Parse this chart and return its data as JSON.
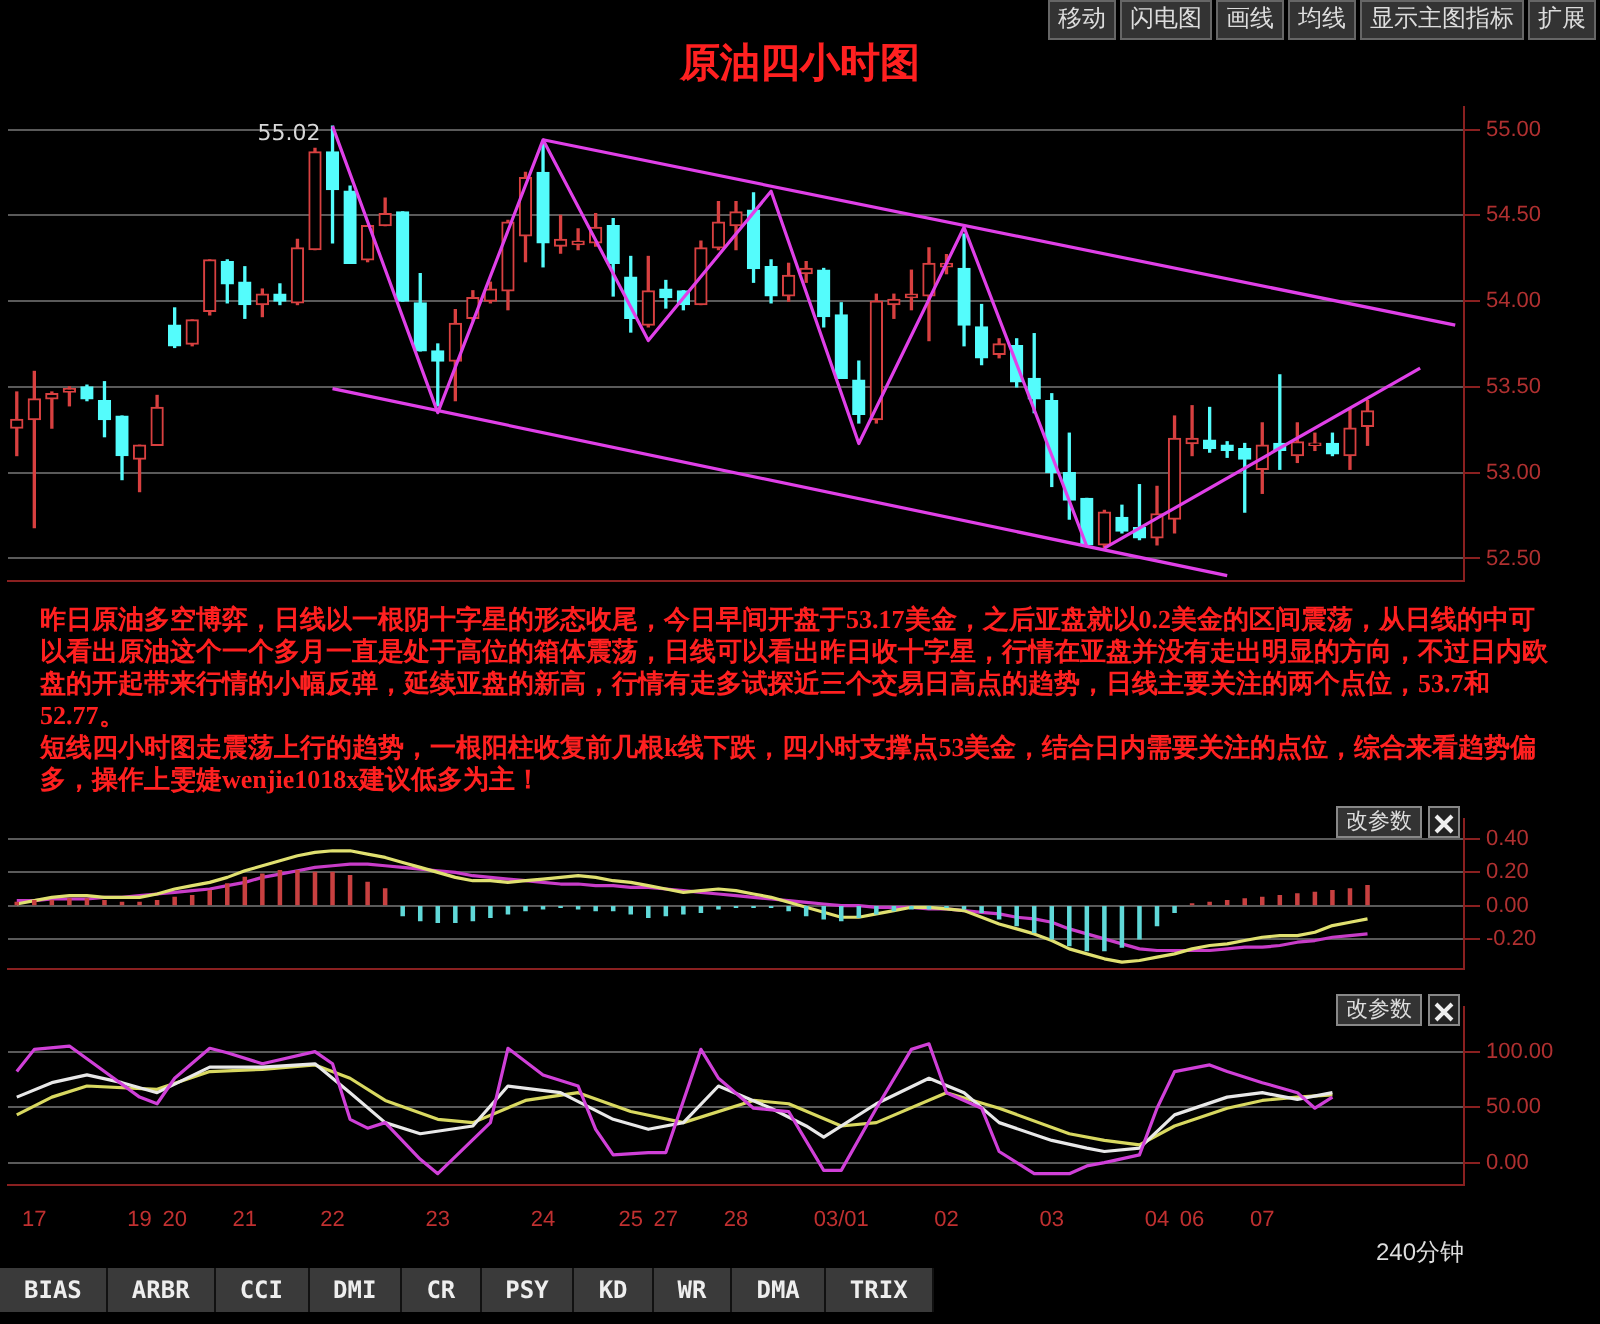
{
  "chart_data": [
    {
      "type": "other",
      "annotations": [
        "移动",
        "闪电图",
        "画线",
        "均线",
        "显示主图指标",
        "扩展"
      ]
    },
    {
      "type": "candlestick",
      "title": "原油四小时图",
      "categories": [
        null,
        null,
        null,
        null,
        null,
        null,
        null,
        null,
        null,
        null,
        null,
        null,
        null,
        null,
        null,
        null,
        null,
        null,
        null,
        null,
        null,
        null,
        null,
        null,
        null,
        null,
        null,
        null,
        null,
        null,
        null,
        null,
        null,
        null,
        null,
        null,
        null,
        null,
        null,
        null,
        null,
        null,
        null,
        null,
        null,
        null,
        null,
        null,
        null,
        null,
        null,
        null,
        null,
        null,
        null,
        null,
        null,
        null,
        null,
        null,
        null,
        null,
        null,
        null,
        null,
        null,
        null,
        null,
        null,
        null,
        null,
        null,
        null,
        null,
        null,
        null,
        null,
        null,
        null,
        null,
        null,
        null,
        null
      ],
      "ohlc": [
        [
          53.26,
          53.47,
          53.1,
          53.31
        ],
        [
          53.31,
          53.59,
          52.68,
          53.43
        ],
        [
          53.43,
          53.47,
          53.26,
          53.46
        ],
        [
          53.47,
          53.5,
          53.39,
          53.49
        ],
        [
          53.5,
          53.51,
          53.42,
          53.43
        ],
        [
          53.42,
          53.53,
          53.21,
          53.31
        ],
        [
          53.33,
          53.33,
          52.96,
          53.1
        ],
        [
          53.08,
          53.16,
          52.89,
          53.16
        ],
        [
          53.16,
          53.45,
          53.16,
          53.38
        ],
        [
          53.86,
          53.96,
          53.73,
          53.74
        ],
        [
          53.75,
          53.89,
          53.74,
          53.89
        ],
        [
          53.94,
          54.24,
          53.92,
          54.24
        ],
        [
          54.23,
          54.24,
          53.99,
          54.1
        ],
        [
          54.11,
          54.2,
          53.9,
          53.98
        ],
        [
          53.98,
          54.07,
          53.91,
          54.04
        ],
        [
          54.04,
          54.1,
          53.98,
          54.0
        ],
        [
          53.99,
          54.36,
          53.98,
          54.31
        ],
        [
          54.3,
          54.89,
          54.3,
          54.87
        ],
        [
          54.87,
          55.02,
          54.34,
          54.65
        ],
        [
          54.64,
          54.67,
          54.22,
          54.22
        ],
        [
          54.24,
          54.44,
          54.23,
          54.44
        ],
        [
          54.44,
          54.6,
          54.44,
          54.51
        ],
        [
          54.52,
          54.52,
          54.0,
          54.0
        ],
        [
          53.99,
          54.16,
          53.71,
          53.71
        ],
        [
          53.71,
          53.75,
          53.39,
          53.65
        ],
        [
          53.65,
          53.95,
          53.42,
          53.87
        ],
        [
          53.9,
          54.06,
          53.89,
          54.02
        ],
        [
          54.0,
          54.11,
          53.99,
          54.07
        ],
        [
          54.06,
          54.47,
          53.95,
          54.46
        ],
        [
          54.38,
          54.75,
          54.23,
          54.72
        ],
        [
          54.75,
          54.92,
          54.2,
          54.34
        ],
        [
          54.32,
          54.5,
          54.28,
          54.36
        ],
        [
          54.33,
          54.42,
          54.3,
          54.35
        ],
        [
          54.34,
          54.51,
          54.32,
          54.43
        ],
        [
          54.44,
          54.48,
          54.03,
          54.22
        ],
        [
          54.14,
          54.26,
          53.82,
          53.9
        ],
        [
          53.86,
          54.26,
          53.85,
          54.06
        ],
        [
          54.07,
          54.12,
          53.96,
          54.02
        ],
        [
          54.06,
          54.06,
          53.95,
          53.98
        ],
        [
          53.98,
          54.35,
          53.98,
          54.31
        ],
        [
          54.31,
          54.58,
          54.3,
          54.46
        ],
        [
          54.44,
          54.58,
          54.3,
          54.52
        ],
        [
          54.53,
          54.63,
          54.11,
          54.19
        ],
        [
          54.2,
          54.24,
          53.99,
          54.03
        ],
        [
          54.03,
          54.22,
          54.0,
          54.15
        ],
        [
          54.16,
          54.23,
          54.11,
          54.19
        ],
        [
          54.18,
          54.19,
          53.85,
          53.91
        ],
        [
          53.92,
          53.99,
          53.55,
          53.55
        ],
        [
          53.54,
          53.65,
          53.29,
          53.34
        ],
        [
          53.31,
          54.04,
          53.29,
          54.0
        ],
        [
          53.98,
          54.04,
          53.9,
          54.01
        ],
        [
          54.02,
          54.18,
          53.95,
          54.04
        ],
        [
          54.03,
          54.31,
          53.77,
          54.22
        ],
        [
          54.2,
          54.27,
          54.16,
          54.22
        ],
        [
          54.19,
          54.39,
          53.74,
          53.86
        ],
        [
          53.85,
          53.98,
          53.63,
          53.67
        ],
        [
          53.69,
          53.78,
          53.67,
          53.75
        ],
        [
          53.74,
          53.78,
          53.5,
          53.53
        ],
        [
          53.55,
          53.81,
          53.35,
          53.43
        ],
        [
          53.42,
          53.46,
          52.92,
          53.0
        ],
        [
          53.0,
          53.23,
          52.73,
          52.84
        ],
        [
          52.85,
          52.85,
          52.57,
          52.58
        ],
        [
          52.58,
          52.78,
          52.56,
          52.77
        ],
        [
          52.74,
          52.81,
          52.65,
          52.66
        ],
        [
          52.68,
          52.93,
          52.61,
          52.62
        ],
        [
          52.62,
          52.92,
          52.58,
          52.76
        ],
        [
          52.73,
          53.33,
          52.65,
          53.2
        ],
        [
          53.17,
          53.39,
          53.1,
          53.2
        ],
        [
          53.19,
          53.38,
          53.12,
          53.14
        ],
        [
          53.16,
          53.18,
          53.09,
          53.13
        ],
        [
          53.14,
          53.17,
          52.77,
          53.08
        ],
        [
          53.02,
          53.29,
          52.88,
          53.16
        ],
        [
          53.17,
          53.57,
          53.02,
          53.13
        ],
        [
          53.1,
          53.29,
          53.06,
          53.18
        ],
        [
          53.16,
          53.23,
          53.13,
          53.17
        ],
        [
          53.17,
          53.23,
          53.1,
          53.11
        ],
        [
          53.1,
          53.37,
          53.02,
          53.26
        ],
        [
          53.27,
          53.42,
          53.16,
          53.36
        ],
        null,
        null,
        null,
        null,
        null
      ],
      "colors": [
        "#d84040",
        "#d84040",
        "#d84040",
        "#d84040",
        "#54fcfc",
        "#54fcfc",
        "#54fcfc",
        "#d84040",
        "#d84040",
        "#54fcfc",
        "#d84040",
        "#d84040",
        "#54fcfc",
        "#54fcfc",
        "#d84040",
        "#54fcfc",
        "#d84040",
        "#d84040",
        "#54fcfc",
        "#54fcfc",
        "#d84040",
        "#d84040",
        "#54fcfc",
        "#54fcfc",
        "#54fcfc",
        "#d84040",
        "#d84040",
        "#d84040",
        "#d84040",
        "#d84040",
        "#54fcfc",
        "#d84040",
        "#d84040",
        "#d84040",
        "#54fcfc",
        "#54fcfc",
        "#d84040",
        "#54fcfc",
        "#54fcfc",
        "#d84040",
        "#d84040",
        "#d84040",
        "#54fcfc",
        "#54fcfc",
        "#d84040",
        "#d84040",
        "#54fcfc",
        "#54fcfc",
        "#54fcfc",
        "#d84040",
        "#d84040",
        "#d84040",
        "#d84040",
        "#d84040",
        "#54fcfc",
        "#54fcfc",
        "#d84040",
        "#54fcfc",
        "#54fcfc",
        "#54fcfc",
        "#54fcfc",
        "#54fcfc",
        "#d84040",
        "#54fcfc",
        "#54fcfc",
        "#d84040",
        "#d84040",
        "#d84040",
        "#54fcfc",
        "#54fcfc",
        "#54fcfc",
        "#d84040",
        "#54fcfc",
        "#d84040",
        "#d84040",
        "#54fcfc",
        "#d84040",
        "#d84040",
        null,
        null,
        null,
        null,
        null
      ],
      "series": [
        {
          "type": "line",
          "color": "#e040e8",
          "values": [
            null,
            null,
            null,
            null,
            null,
            null,
            null,
            null,
            null,
            null,
            null,
            null,
            null,
            null,
            null,
            null,
            null,
            null,
            55.02,
            null,
            null,
            null,
            null,
            null,
            53.35,
            null,
            null,
            null,
            null,
            null,
            54.94,
            null,
            null,
            null,
            null,
            null,
            53.77,
            null,
            null,
            null,
            null,
            null,
            null,
            54.64,
            null,
            null,
            null,
            null,
            53.17,
            null,
            null,
            null,
            null,
            null,
            54.43,
            null,
            null,
            null,
            null,
            null,
            null,
            52.57,
            null,
            null,
            null,
            null,
            null,
            null,
            null,
            null,
            null,
            null,
            null,
            null,
            null,
            null,
            null,
            null,
            null,
            null,
            null,
            null,
            null
          ]
        },
        {
          "type": "line",
          "color": "#e040e8",
          "values": [
            null,
            null,
            null,
            null,
            null,
            null,
            null,
            null,
            null,
            null,
            null,
            null,
            null,
            null,
            null,
            null,
            null,
            null,
            null,
            null,
            null,
            null,
            null,
            null,
            null,
            null,
            null,
            null,
            null,
            null,
            null,
            null,
            null,
            null,
            null,
            null,
            null,
            null,
            null,
            null,
            null,
            null,
            null,
            null,
            null,
            null,
            null,
            null,
            null,
            null,
            null,
            null,
            null,
            null,
            null,
            null,
            null,
            null,
            null,
            null,
            null,
            null,
            52.56,
            null,
            null,
            null,
            null,
            null,
            null,
            null,
            null,
            null,
            null,
            null,
            null,
            null,
            null,
            null,
            null,
            null,
            53.61,
            null,
            null
          ]
        },
        {
          "type": "line",
          "color": "#e040e8",
          "values": [
            null,
            null,
            null,
            null,
            null,
            null,
            null,
            null,
            null,
            null,
            null,
            null,
            null,
            null,
            null,
            null,
            null,
            null,
            null,
            null,
            null,
            null,
            null,
            null,
            null,
            null,
            null,
            null,
            null,
            null,
            54.94,
            null,
            null,
            null,
            null,
            null,
            null,
            null,
            null,
            null,
            null,
            null,
            null,
            null,
            null,
            null,
            null,
            null,
            null,
            null,
            null,
            null,
            null,
            null,
            null,
            null,
            null,
            null,
            null,
            null,
            null,
            null,
            null,
            null,
            null,
            null,
            null,
            null,
            null,
            null,
            null,
            null,
            null,
            null,
            null,
            null,
            null,
            null,
            null,
            null,
            null,
            null,
            53.86
          ]
        },
        {
          "type": "line",
          "color": "#e040e8",
          "values": [
            null,
            null,
            null,
            null,
            null,
            null,
            null,
            null,
            null,
            null,
            null,
            null,
            null,
            null,
            null,
            null,
            null,
            null,
            53.49,
            null,
            null,
            null,
            null,
            null,
            null,
            null,
            null,
            null,
            null,
            null,
            null,
            null,
            null,
            null,
            null,
            null,
            null,
            null,
            null,
            null,
            null,
            null,
            null,
            null,
            null,
            null,
            null,
            null,
            null,
            null,
            null,
            null,
            null,
            null,
            null,
            null,
            null,
            null,
            null,
            null,
            null,
            null,
            null,
            null,
            null,
            null,
            null,
            null,
            null,
            52.4,
            null,
            null,
            null,
            null,
            null,
            null,
            null,
            null,
            null,
            null,
            null,
            null,
            null
          ]
        }
      ],
      "ylim": [
        52.37,
        55.13
      ],
      "yticks": [
        {
          "value": 52.5,
          "label": "52.50"
        },
        {
          "value": 53,
          "label": "53.00"
        },
        {
          "value": 53.5,
          "label": "53.50"
        },
        {
          "value": 54,
          "label": "54.00"
        },
        {
          "value": 54.5,
          "label": "54.50"
        },
        {
          "value": 55,
          "label": "55.00"
        }
      ],
      "grid": "y",
      "tick_labels": "y",
      "annotations": [
        "55.02",
        "昨日原油多空博弈，日线以一根阴十字星的形态收尾，今日早间开盘于53.17美金，之后亚盘就以0.2美金的区间震荡，从日线的中可以看出原油这个一个多月一直是处于高位的箱体震荡，日线可以看出昨日收十字星，行情在亚盘并没有走出明显的方向，不过日内欧盘的开起带来行情的小幅反弹，延续亚盘的新高，行情有走多试探近三个交易日高点的趋势，日线主要关注的两个点位，53.7和52.77。",
        "短线四小时图走震荡上行的趋势，一根阳柱收复前几根k线下跌，四小时支撑点53美金，结合日内需要关注的点位，综合来看趋势偏多，操作上雯婕wenjie1018x建议低多为主！"
      ]
    },
    {
      "type": "bar",
      "categories": [
        null,
        null,
        null,
        null,
        null,
        null,
        null,
        null,
        null,
        null,
        null,
        null,
        null,
        null,
        null,
        null,
        null,
        null,
        null,
        null,
        null,
        null,
        null,
        null,
        null,
        null,
        null,
        null,
        null,
        null,
        null,
        null,
        null,
        null,
        null,
        null,
        null,
        null,
        null,
        null,
        null,
        null,
        null,
        null,
        null,
        null,
        null,
        null,
        null,
        null,
        null,
        null,
        null,
        null,
        null,
        null,
        null,
        null,
        null,
        null,
        null,
        null,
        null,
        null,
        null,
        null,
        null,
        null,
        null,
        null,
        null,
        null,
        null,
        null,
        null,
        null,
        null,
        null,
        null,
        null,
        null,
        null,
        null
      ],
      "series": [
        {
          "type": "bar",
          "values": [
            0.02,
            0.03,
            0.03,
            0.04,
            0.04,
            0.03,
            0.02,
            0.02,
            0.03,
            0.05,
            0.06,
            0.09,
            0.13,
            0.17,
            0.19,
            0.21,
            0.21,
            0.2,
            0.2,
            0.18,
            0.14,
            0.1,
            -0.06,
            -0.09,
            -0.1,
            -0.1,
            -0.09,
            -0.07,
            -0.05,
            -0.03,
            -0.02,
            -0.01,
            -0.02,
            -0.03,
            -0.03,
            -0.05,
            -0.07,
            -0.06,
            -0.05,
            -0.04,
            -0.02,
            -0.01,
            -0.01,
            -0.01,
            -0.03,
            -0.06,
            -0.08,
            -0.09,
            -0.07,
            -0.05,
            -0.03,
            -0.02,
            -0.02,
            -0.01,
            -0.02,
            -0.04,
            -0.08,
            -0.12,
            -0.16,
            -0.2,
            -0.24,
            -0.27,
            -0.27,
            -0.25,
            -0.2,
            -0.12,
            -0.04,
            0.01,
            0.02,
            0.03,
            0.04,
            0.05,
            0.06,
            0.07,
            0.08,
            0.09,
            0.1,
            0.12,
            null,
            null,
            null,
            null,
            null
          ],
          "colors": [
            "#c84040",
            "#c84040",
            "#c84040",
            "#c84040",
            "#c84040",
            "#c84040",
            "#c84040",
            "#c84040",
            "#c84040",
            "#c84040",
            "#c84040",
            "#c84040",
            "#c84040",
            "#c84040",
            "#c84040",
            "#c84040",
            "#c84040",
            "#c84040",
            "#c84040",
            "#c84040",
            "#c84040",
            "#c84040",
            "#60d8d8",
            "#60d8d8",
            "#60d8d8",
            "#60d8d8",
            "#60d8d8",
            "#60d8d8",
            "#60d8d8",
            "#60d8d8",
            "#60d8d8",
            "#60d8d8",
            "#60d8d8",
            "#60d8d8",
            "#60d8d8",
            "#60d8d8",
            "#60d8d8",
            "#60d8d8",
            "#60d8d8",
            "#60d8d8",
            "#60d8d8",
            "#60d8d8",
            "#60d8d8",
            "#60d8d8",
            "#60d8d8",
            "#60d8d8",
            "#60d8d8",
            "#60d8d8",
            "#60d8d8",
            "#60d8d8",
            "#60d8d8",
            "#60d8d8",
            "#60d8d8",
            "#60d8d8",
            "#60d8d8",
            "#60d8d8",
            "#60d8d8",
            "#60d8d8",
            "#60d8d8",
            "#60d8d8",
            "#60d8d8",
            "#60d8d8",
            "#60d8d8",
            "#60d8d8",
            "#60d8d8",
            "#60d8d8",
            "#60d8d8",
            "#c84040",
            "#c84040",
            "#c84040",
            "#c84040",
            "#c84040",
            "#c84040",
            "#c84040",
            "#c84040",
            "#c84040",
            "#c84040",
            "#c84040",
            null,
            null,
            null,
            null,
            null
          ]
        },
        {
          "type": "line",
          "color": "#e0e070",
          "values": [
            0.01,
            0.03,
            0.05,
            0.06,
            0.06,
            0.05,
            0.05,
            0.05,
            0.07,
            0.1,
            0.12,
            0.14,
            0.17,
            0.21,
            0.24,
            0.27,
            0.3,
            0.32,
            0.33,
            0.33,
            0.31,
            0.29,
            0.26,
            0.23,
            0.2,
            0.17,
            0.15,
            0.15,
            0.14,
            0.15,
            0.16,
            0.17,
            0.18,
            0.17,
            0.15,
            0.14,
            0.12,
            0.1,
            0.08,
            0.09,
            0.1,
            0.09,
            0.07,
            0.05,
            0.02,
            -0.01,
            -0.04,
            -0.07,
            -0.07,
            -0.05,
            -0.03,
            -0.01,
            -0.01,
            -0.02,
            -0.03,
            -0.07,
            -0.11,
            -0.14,
            -0.17,
            -0.21,
            -0.26,
            -0.29,
            -0.32,
            -0.34,
            -0.33,
            -0.31,
            -0.29,
            -0.26,
            -0.24,
            -0.23,
            -0.21,
            -0.19,
            -0.18,
            -0.18,
            -0.16,
            -0.12,
            -0.1,
            -0.08,
            null,
            null,
            null,
            null,
            null
          ]
        },
        {
          "type": "line",
          "color": "#c83cc8",
          "values": [
            0.03,
            0.03,
            0.04,
            0.04,
            0.04,
            0.05,
            0.05,
            0.06,
            0.07,
            0.08,
            0.09,
            0.1,
            0.12,
            0.14,
            0.17,
            0.19,
            0.21,
            0.23,
            0.24,
            0.25,
            0.25,
            0.24,
            0.23,
            0.22,
            0.21,
            0.2,
            0.18,
            0.17,
            0.16,
            0.15,
            0.14,
            0.13,
            0.13,
            0.12,
            0.12,
            0.11,
            0.11,
            0.1,
            0.09,
            0.08,
            0.07,
            0.06,
            0.05,
            0.04,
            0.03,
            0.02,
            0.01,
            0.0,
            0.0,
            -0.01,
            -0.01,
            -0.01,
            -0.02,
            -0.02,
            -0.03,
            -0.04,
            -0.05,
            -0.07,
            -0.08,
            -0.1,
            -0.14,
            -0.17,
            -0.2,
            -0.23,
            -0.26,
            -0.27,
            -0.27,
            -0.27,
            -0.27,
            -0.26,
            -0.25,
            -0.25,
            -0.24,
            -0.22,
            -0.21,
            -0.19,
            -0.18,
            -0.17,
            null,
            null,
            null,
            null,
            null
          ]
        }
      ],
      "ylim": [
        -0.38,
        0.52
      ],
      "yticks": [
        {
          "value": -0.2,
          "label": "-0.20"
        },
        {
          "value": 0,
          "label": "0.00"
        },
        {
          "value": 0.2,
          "label": "0.20"
        },
        {
          "value": 0.4,
          "label": "0.40"
        }
      ],
      "grid": "y",
      "tick_labels": "y",
      "annotations": [
        "改参数"
      ]
    },
    {
      "type": "line",
      "xlabel": "240分钟",
      "categories": [
        null,
        "17",
        null,
        null,
        null,
        null,
        null,
        "19",
        null,
        "20",
        null,
        null,
        null,
        "21",
        null,
        null,
        null,
        null,
        "22",
        null,
        null,
        null,
        null,
        null,
        "23",
        null,
        null,
        null,
        null,
        null,
        "24",
        null,
        null,
        null,
        null,
        "25",
        null,
        "27",
        null,
        null,
        null,
        "28",
        null,
        null,
        null,
        null,
        null,
        "03/01",
        null,
        null,
        null,
        null,
        null,
        "02",
        null,
        null,
        null,
        null,
        null,
        "03",
        null,
        null,
        null,
        null,
        null,
        "04",
        null,
        "06",
        null,
        null,
        null,
        "07",
        null,
        null,
        null,
        null,
        null,
        null,
        null,
        null,
        null,
        null,
        null
      ],
      "series": [
        {
          "color": "#d040d8",
          "values": [
            82,
            102,
            null,
            105,
            null,
            82,
            null,
            59,
            53,
            76,
            null,
            103,
            99,
            null,
            89,
            null,
            null,
            100,
            89,
            39,
            31,
            36,
            null,
            3,
            -10,
            null,
            null,
            36,
            103,
            null,
            79,
            null,
            69,
            30,
            7,
            null,
            9,
            9,
            null,
            102,
            76,
            null,
            49,
            null,
            46,
            null,
            -7,
            -7,
            null,
            49,
            null,
            102,
            107,
            63,
            null,
            49,
            10,
            null,
            -10,
            null,
            -10,
            -3,
            0,
            null,
            7,
            49,
            82,
            null,
            88,
            82,
            null,
            72,
            null,
            63,
            49,
            59,
            null,
            null,
            null,
            null,
            null,
            null,
            null
          ]
        },
        {
          "color": "#e8e8e8",
          "values": [
            59,
            null,
            72,
            null,
            79,
            null,
            72,
            null,
            63,
            null,
            null,
            86,
            null,
            null,
            86,
            null,
            null,
            89,
            null,
            63,
            null,
            36,
            null,
            26,
            null,
            null,
            33,
            null,
            69,
            null,
            null,
            63,
            null,
            null,
            39,
            null,
            30,
            null,
            36,
            null,
            69,
            null,
            null,
            49,
            null,
            33,
            23,
            null,
            null,
            53,
            null,
            null,
            76,
            null,
            63,
            null,
            36,
            null,
            null,
            20,
            null,
            13,
            10,
            null,
            13,
            null,
            43,
            null,
            null,
            59,
            null,
            63,
            null,
            57,
            null,
            63,
            null,
            null,
            null,
            null,
            null,
            null,
            null
          ]
        },
        {
          "color": "#d8d860",
          "values": [
            43,
            null,
            59,
            null,
            69,
            null,
            null,
            null,
            66,
            null,
            null,
            82,
            null,
            null,
            84,
            null,
            null,
            88,
            null,
            76,
            null,
            56,
            null,
            null,
            39,
            null,
            36,
            null,
            null,
            56,
            null,
            null,
            63,
            null,
            null,
            46,
            null,
            null,
            36,
            null,
            null,
            null,
            56,
            null,
            53,
            null,
            null,
            33,
            null,
            36,
            null,
            null,
            null,
            63,
            null,
            null,
            49,
            null,
            null,
            null,
            26,
            null,
            20,
            null,
            16,
            null,
            33,
            null,
            null,
            49,
            null,
            56,
            null,
            59,
            null,
            61,
            null,
            null,
            null,
            null,
            null,
            null,
            null
          ]
        }
      ],
      "ylim": [
        -20,
        140
      ],
      "yticks": [
        {
          "value": 0,
          "label": "0.00"
        },
        {
          "value": 50,
          "label": "50.00"
        },
        {
          "value": 100,
          "label": "100.00"
        }
      ],
      "grid": "y",
      "annotations": [
        "改参数"
      ]
    },
    {
      "type": "other",
      "annotations": [
        "BIAS",
        "ARBR",
        "CCI",
        "DMI",
        "CR",
        "PSY",
        "KD",
        "WR",
        "DMA",
        "TRIX"
      ]
    }
  ]
}
